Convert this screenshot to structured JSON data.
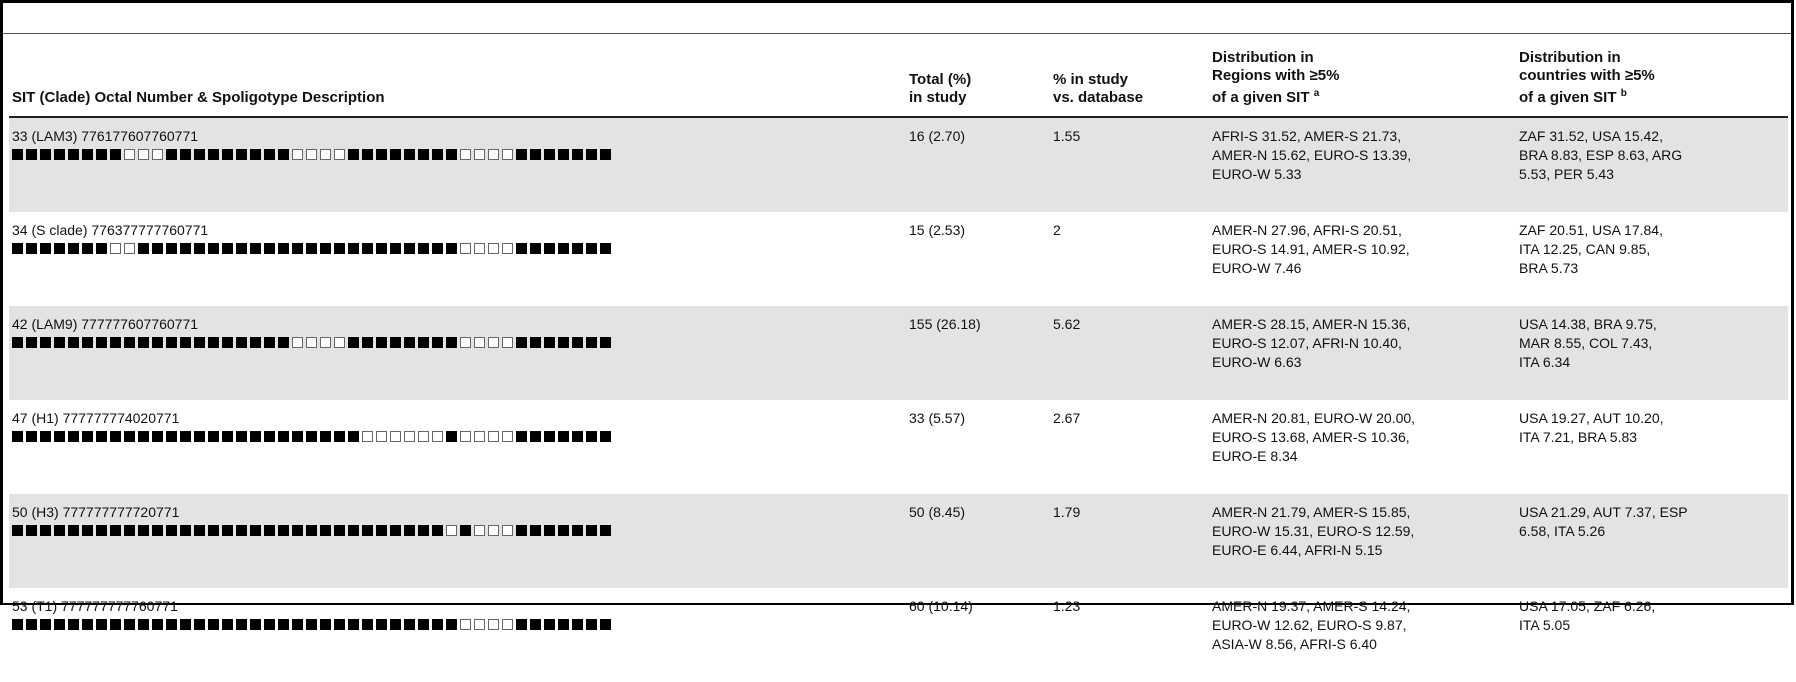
{
  "header": {
    "col1": "SIT (Clade) Octal Number & Spoligotype Description",
    "col2_line1": "Total (%)",
    "col2_line2": "in study",
    "col3_line1": "% in study",
    "col3_line2": "vs. database",
    "col4_line1": "Distribution in",
    "col4_line2": "Regions with ≥5%",
    "col4_line3": "of a given SIT",
    "col4_sup": "a",
    "col5_line1": "Distribution in",
    "col5_line2": "countries with ≥5%",
    "col5_line3": "of a given SIT",
    "col5_sup": "b"
  },
  "rows": [
    {
      "sit": "33 (LAM3) 776177607760771",
      "pattern": "1111111100011111111100001111111100001111111",
      "total": "16 (2.70)",
      "pct": "1.55",
      "regions": [
        "AFRI-S 31.52, AMER-S 21.73,",
        "AMER-N 15.62, EURO-S 13.39,",
        "EURO-W 5.33"
      ],
      "countries": [
        "ZAF 31.52, USA 15.42,",
        "BRA 8.83, ESP 8.63, ARG",
        "5.53, PER 5.43"
      ]
    },
    {
      "sit": "34 (S clade) 776377777760771",
      "pattern": "1111111001111111111111111111111100001111111",
      "total": "15 (2.53)",
      "pct": "2",
      "regions": [
        "AMER-N 27.96, AFRI-S 20.51,",
        "EURO-S 14.91, AMER-S 10.92,",
        "EURO-W 7.46"
      ],
      "countries": [
        "ZAF 20.51, USA 17.84,",
        "ITA 12.25, CAN 9.85,",
        "BRA 5.73"
      ]
    },
    {
      "sit": "42 (LAM9) 777777607760771",
      "pattern": "1111111111111111111100001111111100001111111",
      "total": "155 (26.18)",
      "pct": "5.62",
      "regions": [
        "AMER-S 28.15, AMER-N 15.36,",
        "EURO-S 12.07, AFRI-N 10.40,",
        "EURO-W 6.63"
      ],
      "countries": [
        "USA 14.38, BRA 9.75,",
        "MAR 8.55, COL 7.43,",
        "ITA 6.34"
      ]
    },
    {
      "sit": "47 (H1) 777777774020771",
      "pattern": "1111111111111111111111111000000100001111111",
      "total": "33 (5.57)",
      "pct": "2.67",
      "regions": [
        "AMER-N 20.81, EURO-W 20.00,",
        "EURO-S 13.68, AMER-S 10.36,",
        "EURO-E 8.34"
      ],
      "countries": [
        "USA 19.27, AUT 10.20,",
        "ITA 7.21, BRA 5.83"
      ]
    },
    {
      "sit": "50 (H3) 777777777720771",
      "pattern": "1111111111111111111111111111111010001111111",
      "total": "50 (8.45)",
      "pct": "1.79",
      "regions": [
        "AMER-N 21.79, AMER-S 15.85,",
        "EURO-W 15.31, EURO-S 12.59,",
        "EURO-E 6.44, AFRI-N 5.15"
      ],
      "countries": [
        "USA 21.29, AUT 7.37, ESP",
        "6.58, ITA 5.26"
      ]
    },
    {
      "sit": "53 (T1) 777777777760771",
      "pattern": "1111111111111111111111111111111100001111111",
      "total": "60 (10.14)",
      "pct": "1.23",
      "regions": [
        "AMER-N 19.37, AMER-S 14.24,",
        "EURO-W 12.62, EURO-S 9.87,",
        "ASIA-W 8.56, AFRI-S 6.40"
      ],
      "countries": [
        "USA 17.05, ZAF 6.26,",
        "ITA 5.05"
      ]
    }
  ]
}
